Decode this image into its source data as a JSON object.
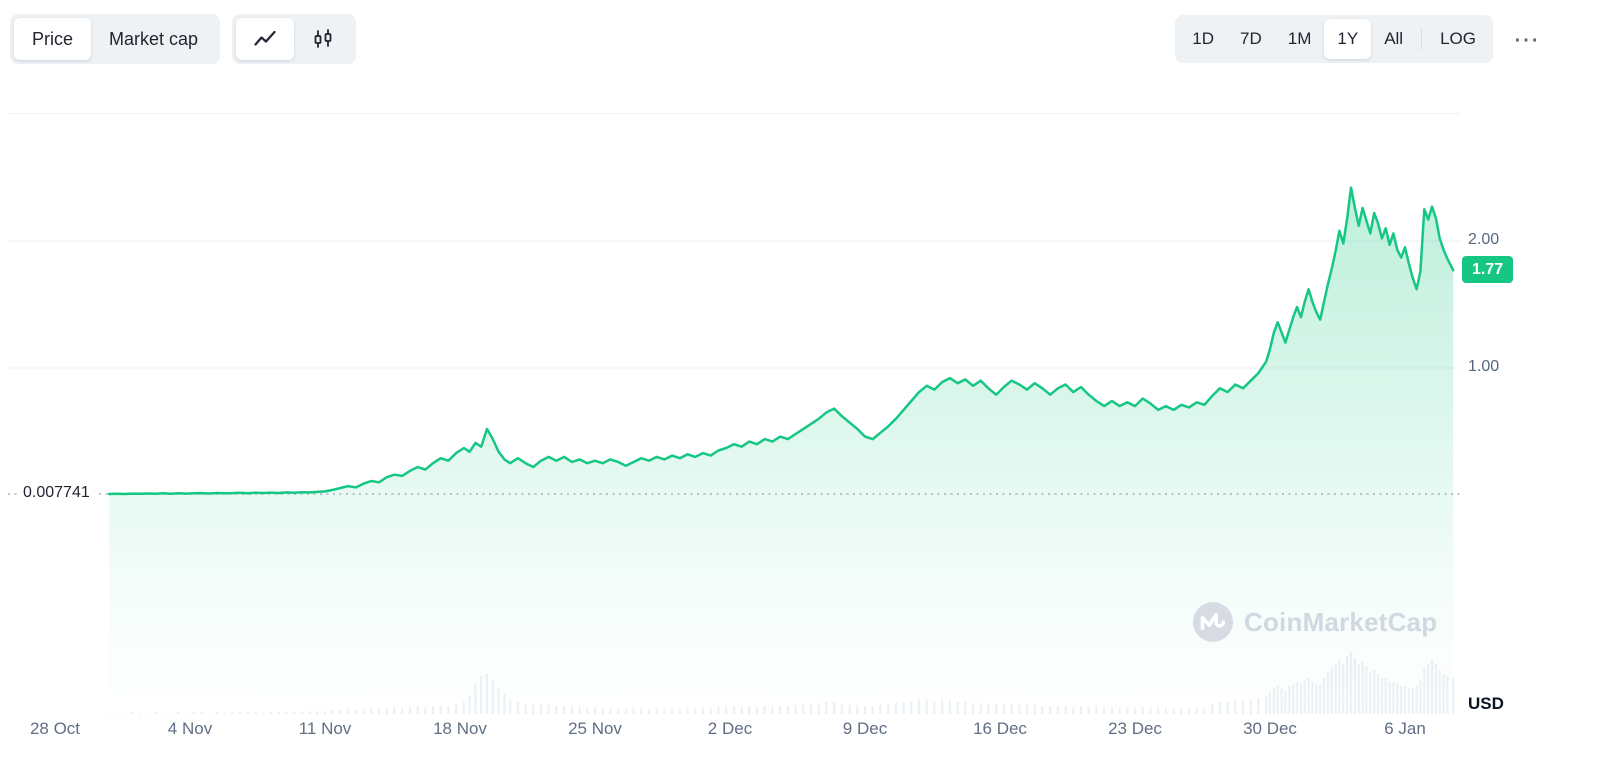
{
  "toolbar": {
    "view_toggle": {
      "price_label": "Price",
      "market_cap_label": "Market cap"
    },
    "chart_type_icons": {
      "line": "line-chart-icon",
      "candlestick": "candlestick-icon"
    },
    "ranges": [
      {
        "label": "1D",
        "selected": false
      },
      {
        "label": "7D",
        "selected": false
      },
      {
        "label": "1M",
        "selected": false
      },
      {
        "label": "1Y",
        "selected": true
      },
      {
        "label": "All",
        "selected": false
      },
      {
        "label": "LOG",
        "selected": false
      }
    ],
    "more_label": "⋯"
  },
  "watermark_text": "CoinMarketCap",
  "unit_label": "USD",
  "chart_data": {
    "type": "line",
    "title": "Token price chart, 1Y range (Oct 28 - Jan 8)",
    "xlabel": "",
    "ylabel": "Price (USD)",
    "legend": "none",
    "grid": "horizontal",
    "ylim_displayed": [
      0,
      3.0
    ],
    "baseline": {
      "value": 0.007741,
      "label": "0.007741"
    },
    "current": {
      "value": 1.77,
      "label": "1.77"
    },
    "y_ticks": [
      {
        "value": 2.0,
        "label": "2.00"
      },
      {
        "value": 1.0,
        "label": "1.00"
      }
    ],
    "x_ticks": [
      {
        "day": 0,
        "label": "28 Oct"
      },
      {
        "day": 7,
        "label": "4 Nov"
      },
      {
        "day": 14,
        "label": "11 Nov"
      },
      {
        "day": 21,
        "label": "18 Nov"
      },
      {
        "day": 28,
        "label": "25 Nov"
      },
      {
        "day": 35,
        "label": "2 Dec"
      },
      {
        "day": 42,
        "label": "9 Dec"
      },
      {
        "day": 49,
        "label": "16 Dec"
      },
      {
        "day": 56,
        "label": "23 Dec"
      },
      {
        "day": 63,
        "label": "30 Dec"
      },
      {
        "day": 70,
        "label": "6 Jan"
      }
    ],
    "colors": {
      "line": "#16c784",
      "badge_bg": "#16c784",
      "volume": "#edf1f6",
      "grid": "#eff2f5",
      "baseline_dots": "#a6b0c3"
    },
    "points_format": [
      "day_offset_from_28_oct",
      "price_usd",
      "relative_volume"
    ],
    "points": [
      [
        2.8,
        0.008,
        1
      ],
      [
        3.2,
        0.01,
        1
      ],
      [
        3.6,
        0.008,
        1
      ],
      [
        4,
        0.011,
        2
      ],
      [
        4.4,
        0.009,
        1
      ],
      [
        4.8,
        0.012,
        1
      ],
      [
        5.2,
        0.01,
        2
      ],
      [
        5.6,
        0.013,
        1
      ],
      [
        6,
        0.01,
        1
      ],
      [
        6.4,
        0.014,
        2
      ],
      [
        6.8,
        0.011,
        1
      ],
      [
        7.2,
        0.013,
        2
      ],
      [
        7.6,
        0.015,
        2
      ],
      [
        8,
        0.012,
        1
      ],
      [
        8.4,
        0.016,
        2
      ],
      [
        8.8,
        0.013,
        1
      ],
      [
        9.2,
        0.015,
        2
      ],
      [
        9.6,
        0.017,
        2
      ],
      [
        10,
        0.014,
        2
      ],
      [
        10.4,
        0.018,
        2
      ],
      [
        10.8,
        0.016,
        1
      ],
      [
        11.2,
        0.019,
        2
      ],
      [
        11.6,
        0.016,
        2
      ],
      [
        12,
        0.02,
        2
      ],
      [
        12.4,
        0.018,
        2
      ],
      [
        12.8,
        0.022,
        2
      ],
      [
        13.2,
        0.02,
        3
      ],
      [
        13.6,
        0.024,
        3
      ],
      [
        14,
        0.028,
        3
      ],
      [
        14.4,
        0.04,
        4
      ],
      [
        14.8,
        0.055,
        4
      ],
      [
        15.2,
        0.07,
        5
      ],
      [
        15.6,
        0.06,
        4
      ],
      [
        16,
        0.09,
        5
      ],
      [
        16.4,
        0.11,
        6
      ],
      [
        16.8,
        0.1,
        5
      ],
      [
        17.2,
        0.14,
        6
      ],
      [
        17.6,
        0.16,
        7
      ],
      [
        18,
        0.15,
        6
      ],
      [
        18.4,
        0.19,
        7
      ],
      [
        18.8,
        0.22,
        8
      ],
      [
        19.2,
        0.2,
        7
      ],
      [
        19.6,
        0.25,
        8
      ],
      [
        20,
        0.29,
        9
      ],
      [
        20.4,
        0.27,
        8
      ],
      [
        20.8,
        0.33,
        10
      ],
      [
        21.2,
        0.37,
        12
      ],
      [
        21.5,
        0.34,
        18
      ],
      [
        21.8,
        0.41,
        30
      ],
      [
        22.1,
        0.38,
        38
      ],
      [
        22.4,
        0.52,
        40
      ],
      [
        22.7,
        0.44,
        34
      ],
      [
        23,
        0.34,
        26
      ],
      [
        23.3,
        0.28,
        20
      ],
      [
        23.6,
        0.25,
        15
      ],
      [
        24,
        0.29,
        12
      ],
      [
        24.4,
        0.25,
        10
      ],
      [
        24.8,
        0.22,
        9
      ],
      [
        25.2,
        0.27,
        10
      ],
      [
        25.6,
        0.3,
        9
      ],
      [
        26,
        0.27,
        8
      ],
      [
        26.4,
        0.3,
        8
      ],
      [
        26.8,
        0.26,
        7
      ],
      [
        27.2,
        0.28,
        7
      ],
      [
        27.6,
        0.25,
        6
      ],
      [
        28,
        0.27,
        7
      ],
      [
        28.4,
        0.25,
        6
      ],
      [
        28.8,
        0.28,
        6
      ],
      [
        29.2,
        0.26,
        5
      ],
      [
        29.6,
        0.23,
        5
      ],
      [
        30,
        0.26,
        6
      ],
      [
        30.4,
        0.29,
        6
      ],
      [
        30.8,
        0.27,
        5
      ],
      [
        31.2,
        0.3,
        6
      ],
      [
        31.6,
        0.28,
        5
      ],
      [
        32,
        0.31,
        6
      ],
      [
        32.4,
        0.29,
        5
      ],
      [
        32.8,
        0.32,
        6
      ],
      [
        33.2,
        0.3,
        5
      ],
      [
        33.6,
        0.33,
        6
      ],
      [
        34,
        0.31,
        6
      ],
      [
        34.4,
        0.35,
        7
      ],
      [
        34.8,
        0.37,
        7
      ],
      [
        35.2,
        0.4,
        8
      ],
      [
        35.6,
        0.38,
        7
      ],
      [
        36,
        0.42,
        8
      ],
      [
        36.4,
        0.4,
        7
      ],
      [
        36.8,
        0.44,
        8
      ],
      [
        37.2,
        0.42,
        7
      ],
      [
        37.6,
        0.46,
        8
      ],
      [
        38,
        0.44,
        8
      ],
      [
        38.4,
        0.48,
        9
      ],
      [
        38.8,
        0.52,
        10
      ],
      [
        39.2,
        0.56,
        10
      ],
      [
        39.6,
        0.6,
        11
      ],
      [
        40,
        0.65,
        12
      ],
      [
        40.4,
        0.68,
        12
      ],
      [
        40.8,
        0.62,
        10
      ],
      [
        41.2,
        0.57,
        9
      ],
      [
        41.6,
        0.52,
        9
      ],
      [
        42,
        0.46,
        8
      ],
      [
        42.4,
        0.44,
        8
      ],
      [
        42.8,
        0.49,
        9
      ],
      [
        43.2,
        0.54,
        10
      ],
      [
        43.6,
        0.6,
        11
      ],
      [
        44,
        0.67,
        12
      ],
      [
        44.4,
        0.74,
        13
      ],
      [
        44.8,
        0.81,
        14
      ],
      [
        45.2,
        0.86,
        15
      ],
      [
        45.6,
        0.83,
        13
      ],
      [
        46,
        0.89,
        14
      ],
      [
        46.4,
        0.92,
        14
      ],
      [
        46.8,
        0.88,
        12
      ],
      [
        47.2,
        0.91,
        12
      ],
      [
        47.6,
        0.86,
        11
      ],
      [
        48,
        0.9,
        11
      ],
      [
        48.4,
        0.84,
        10
      ],
      [
        48.8,
        0.79,
        10
      ],
      [
        49.2,
        0.85,
        10
      ],
      [
        49.6,
        0.9,
        10
      ],
      [
        50,
        0.87,
        9
      ],
      [
        50.4,
        0.83,
        9
      ],
      [
        50.8,
        0.88,
        9
      ],
      [
        51.2,
        0.84,
        8
      ],
      [
        51.6,
        0.79,
        8
      ],
      [
        52,
        0.84,
        8
      ],
      [
        52.4,
        0.87,
        8
      ],
      [
        52.8,
        0.81,
        7
      ],
      [
        53.2,
        0.85,
        8
      ],
      [
        53.6,
        0.79,
        7
      ],
      [
        54,
        0.74,
        7
      ],
      [
        54.4,
        0.7,
        7
      ],
      [
        54.8,
        0.74,
        6
      ],
      [
        55.2,
        0.7,
        6
      ],
      [
        55.6,
        0.73,
        6
      ],
      [
        56,
        0.7,
        6
      ],
      [
        56.4,
        0.76,
        7
      ],
      [
        56.8,
        0.72,
        6
      ],
      [
        57.2,
        0.67,
        6
      ],
      [
        57.6,
        0.7,
        6
      ],
      [
        58,
        0.67,
        5
      ],
      [
        58.4,
        0.71,
        6
      ],
      [
        58.8,
        0.69,
        5
      ],
      [
        59.2,
        0.73,
        6
      ],
      [
        59.6,
        0.71,
        6
      ],
      [
        60,
        0.78,
        10
      ],
      [
        60.4,
        0.84,
        12
      ],
      [
        60.8,
        0.81,
        12
      ],
      [
        61.2,
        0.87,
        14
      ],
      [
        61.6,
        0.84,
        13
      ],
      [
        62,
        0.9,
        15
      ],
      [
        62.4,
        0.96,
        16
      ],
      [
        62.8,
        1.05,
        18
      ],
      [
        63,
        1.15,
        22
      ],
      [
        63.2,
        1.28,
        26
      ],
      [
        63.4,
        1.36,
        28
      ],
      [
        63.6,
        1.28,
        26
      ],
      [
        63.8,
        1.2,
        24
      ],
      [
        64,
        1.3,
        28
      ],
      [
        64.2,
        1.4,
        30
      ],
      [
        64.4,
        1.48,
        32
      ],
      [
        64.6,
        1.4,
        30
      ],
      [
        64.8,
        1.52,
        34
      ],
      [
        65,
        1.62,
        36
      ],
      [
        65.2,
        1.52,
        32
      ],
      [
        65.4,
        1.44,
        30
      ],
      [
        65.6,
        1.38,
        30
      ],
      [
        65.8,
        1.52,
        36
      ],
      [
        66,
        1.66,
        42
      ],
      [
        66.2,
        1.78,
        46
      ],
      [
        66.4,
        1.92,
        50
      ],
      [
        66.6,
        2.08,
        54
      ],
      [
        66.8,
        1.98,
        50
      ],
      [
        67,
        2.18,
        58
      ],
      [
        67.2,
        2.42,
        62
      ],
      [
        67.4,
        2.26,
        56
      ],
      [
        67.6,
        2.12,
        50
      ],
      [
        67.8,
        2.26,
        52
      ],
      [
        68,
        2.16,
        48
      ],
      [
        68.2,
        2.06,
        42
      ],
      [
        68.4,
        2.22,
        44
      ],
      [
        68.6,
        2.14,
        40
      ],
      [
        68.8,
        2.02,
        36
      ],
      [
        69,
        2.1,
        36
      ],
      [
        69.2,
        1.97,
        32
      ],
      [
        69.4,
        2.06,
        32
      ],
      [
        69.6,
        1.93,
        30
      ],
      [
        69.8,
        1.87,
        28
      ],
      [
        70,
        1.95,
        28
      ],
      [
        70.2,
        1.82,
        26
      ],
      [
        70.4,
        1.71,
        26
      ],
      [
        70.6,
        1.62,
        28
      ],
      [
        70.8,
        1.76,
        34
      ],
      [
        71,
        2.25,
        46
      ],
      [
        71.2,
        2.17,
        50
      ],
      [
        71.4,
        2.27,
        54
      ],
      [
        71.6,
        2.18,
        50
      ],
      [
        71.8,
        2.02,
        44
      ],
      [
        72,
        1.93,
        40
      ],
      [
        72.2,
        1.86,
        38
      ],
      [
        72.5,
        1.77,
        36
      ]
    ]
  }
}
